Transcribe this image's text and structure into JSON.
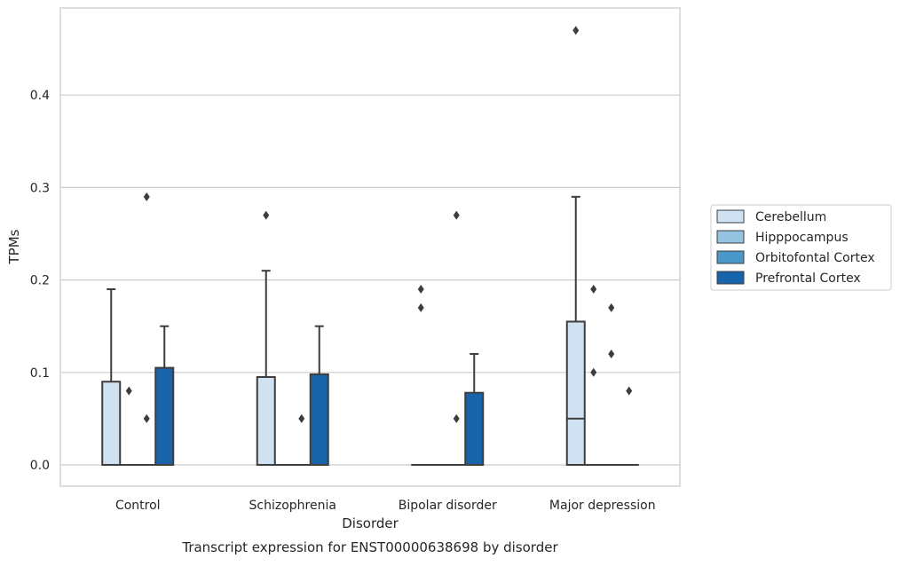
{
  "chart_data": {
    "type": "box",
    "title": "",
    "caption": "Transcript expression for ENST00000638698 by disorder",
    "xlabel": "Disorder",
    "ylabel": "TPMs",
    "categories": [
      "Control",
      "Schizophrenia",
      "Bipolar disorder",
      "Major depression"
    ],
    "y_ticks": [
      0.0,
      0.1,
      0.2,
      0.3,
      0.4
    ],
    "y_tick_labels": [
      "0.0",
      "0.1",
      "0.2",
      "0.3",
      "0.4"
    ],
    "ylim": [
      -0.023,
      0.494
    ],
    "grid": "horizontal",
    "legend_position": "right",
    "series": [
      {
        "name": "Cerebellum",
        "color": "#d0e1f2",
        "boxes": [
          {
            "q1": 0.0,
            "median": 0.0,
            "q3": 0.09,
            "whisker_low": 0.0,
            "whisker_high": 0.19,
            "outliers": []
          },
          {
            "q1": 0.0,
            "median": 0.0,
            "q3": 0.095,
            "whisker_low": 0.0,
            "whisker_high": 0.21,
            "outliers": [
              0.27
            ]
          },
          {
            "q1": 0.0,
            "median": 0.0,
            "q3": 0.0,
            "whisker_low": 0.0,
            "whisker_high": 0.0,
            "outliers": [
              0.17,
              0.19
            ]
          },
          {
            "q1": 0.0,
            "median": 0.05,
            "q3": 0.155,
            "whisker_low": 0.0,
            "whisker_high": 0.29,
            "outliers": [
              0.47
            ]
          }
        ]
      },
      {
        "name": "Hipppocampus",
        "color": "#94c4df",
        "boxes": [
          {
            "q1": 0.0,
            "median": 0.0,
            "q3": 0.0,
            "whisker_low": 0.0,
            "whisker_high": 0.0,
            "outliers": [
              0.08
            ]
          },
          {
            "q1": 0.0,
            "median": 0.0,
            "q3": 0.0,
            "whisker_low": 0.0,
            "whisker_high": 0.0,
            "outliers": []
          },
          {
            "q1": 0.0,
            "median": 0.0,
            "q3": 0.0,
            "whisker_low": 0.0,
            "whisker_high": 0.0,
            "outliers": []
          },
          {
            "q1": 0.0,
            "median": 0.0,
            "q3": 0.0,
            "whisker_low": 0.0,
            "whisker_high": 0.0,
            "outliers": [
              0.1,
              0.19
            ]
          }
        ]
      },
      {
        "name": "Orbitofontal Cortex",
        "color": "#4a98c9",
        "boxes": [
          {
            "q1": 0.0,
            "median": 0.0,
            "q3": 0.0,
            "whisker_low": 0.0,
            "whisker_high": 0.0,
            "outliers": [
              0.05,
              0.29
            ]
          },
          {
            "q1": 0.0,
            "median": 0.0,
            "q3": 0.0,
            "whisker_low": 0.0,
            "whisker_high": 0.0,
            "outliers": [
              0.05
            ]
          },
          {
            "q1": 0.0,
            "median": 0.0,
            "q3": 0.0,
            "whisker_low": 0.0,
            "whisker_high": 0.0,
            "outliers": [
              0.05,
              0.27
            ]
          },
          {
            "q1": 0.0,
            "median": 0.0,
            "q3": 0.0,
            "whisker_low": 0.0,
            "whisker_high": 0.0,
            "outliers": [
              0.12,
              0.17
            ]
          }
        ]
      },
      {
        "name": "Prefrontal Cortex",
        "color": "#1764ab",
        "boxes": [
          {
            "q1": 0.0,
            "median": 0.0,
            "q3": 0.105,
            "whisker_low": 0.0,
            "whisker_high": 0.15,
            "outliers": []
          },
          {
            "q1": 0.0,
            "median": 0.0,
            "q3": 0.098,
            "whisker_low": 0.0,
            "whisker_high": 0.15,
            "outliers": []
          },
          {
            "q1": 0.0,
            "median": 0.0,
            "q3": 0.078,
            "whisker_low": 0.0,
            "whisker_high": 0.12,
            "outliers": []
          },
          {
            "q1": 0.0,
            "median": 0.0,
            "q3": 0.0,
            "whisker_low": 0.0,
            "whisker_high": 0.0,
            "outliers": [
              0.08
            ]
          }
        ]
      }
    ]
  }
}
